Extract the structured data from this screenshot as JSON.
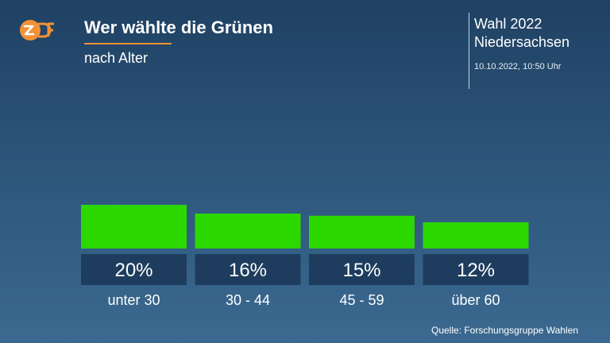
{
  "branding": {
    "logo_text": "ZDF",
    "logo_color": "#f39237"
  },
  "header": {
    "title": "Wer wählte die Grünen",
    "subtitle": "nach Alter"
  },
  "election_info": {
    "title": "Wahl 2022",
    "state": "Niedersachsen",
    "timestamp": "10.10.2022, 10:50 Uhr"
  },
  "source": "Quelle: Forschungsgruppe Wahlen",
  "colors": {
    "bar": "#2bd800",
    "label_box": "#1e3d5e",
    "accent": "#f39237"
  },
  "chart_data": {
    "type": "bar",
    "categories": [
      "unter 30",
      "30 - 44",
      "45 - 59",
      "über 60"
    ],
    "values": [
      20,
      16,
      15,
      12
    ],
    "value_labels": [
      "20%",
      "16%",
      "15%",
      "12%"
    ],
    "title": "Wer wählte die Grünen",
    "subtitle": "nach Alter",
    "xlabel": "",
    "ylabel": "",
    "ylim": [
      0,
      20
    ],
    "grid": false,
    "legend": "none"
  }
}
